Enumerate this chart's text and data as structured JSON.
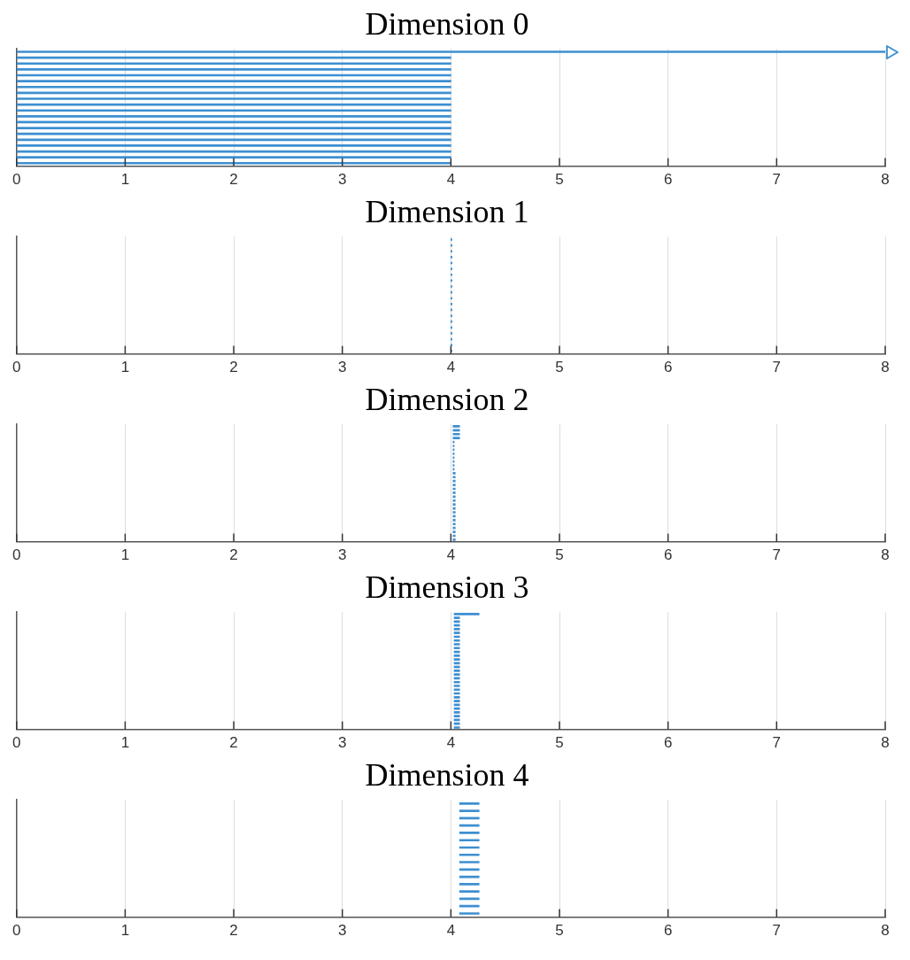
{
  "chart_data": [
    {
      "type": "bar",
      "title": "Dimension 0",
      "orientation": "horizontal",
      "categories": [
        null,
        null,
        null,
        null,
        null,
        null,
        null,
        null,
        null,
        null,
        null,
        null,
        null,
        null,
        null,
        null,
        null,
        null,
        null,
        null
      ],
      "color": "#3d8fd1",
      "values": [
        8,
        4,
        4,
        4,
        4,
        4,
        4,
        4,
        4,
        4,
        4,
        4,
        4,
        4,
        4,
        4,
        4,
        4,
        4,
        4
      ],
      "base": [
        0,
        0,
        0,
        0,
        0,
        0,
        0,
        0,
        0,
        0,
        0,
        0,
        0,
        0,
        0,
        0,
        0,
        0,
        0,
        0
      ],
      "xlim": [
        0,
        8
      ],
      "xticks": [
        0,
        1,
        2,
        3,
        4,
        5,
        6,
        7,
        8
      ],
      "grid": "x",
      "tick_labels": "x"
    },
    {
      "type": "bar",
      "title": "Dimension 1",
      "orientation": "horizontal",
      "categories": [
        null,
        null,
        null,
        null,
        null,
        null,
        null,
        null,
        null,
        null,
        null,
        null,
        null,
        null,
        null,
        null,
        null,
        null,
        null,
        null
      ],
      "color": "#3d8fd1",
      "values": [
        0.01,
        0.01,
        0.01,
        0.01,
        0.01,
        0.01,
        0.01,
        0.01,
        0.01,
        0.01,
        0.01,
        0.01,
        0.01,
        0.01,
        0.01,
        0.01,
        0.01,
        0.01,
        0.01,
        0.01
      ],
      "base": [
        4,
        4,
        4,
        4,
        4,
        4,
        4,
        4,
        4,
        4,
        4,
        4,
        4,
        4,
        4,
        4,
        4,
        4,
        4,
        4
      ],
      "xlim": [
        0,
        8
      ],
      "xticks": [
        0,
        1,
        2,
        3,
        4,
        5,
        6,
        7,
        8
      ],
      "grid": "x",
      "tick_labels": "x"
    },
    {
      "type": "bar",
      "title": "Dimension 2",
      "orientation": "horizontal",
      "categories": [
        null,
        null,
        null,
        null,
        null,
        null,
        null,
        null,
        null,
        null,
        null,
        null,
        null,
        null,
        null,
        null,
        null,
        null,
        null,
        null,
        null,
        null,
        null,
        null,
        null,
        null,
        null,
        null,
        null,
        null
      ],
      "color": "#3d8fd1",
      "values": [
        0.06,
        0.06,
        0.06,
        0.06,
        0.01,
        0.01,
        0.01,
        0.01,
        0.01,
        0.01,
        0.01,
        0.01,
        0.02,
        0.02,
        0.02,
        0.02,
        0.02,
        0.02,
        0.02,
        0.02,
        0.02,
        0.02,
        0.02,
        0.02,
        0.02,
        0.02,
        0.02,
        0.02,
        0.02,
        0.02
      ],
      "base": [
        4.02,
        4.02,
        4.02,
        4.02,
        4.02,
        4.02,
        4.02,
        4.02,
        4.02,
        4.02,
        4.02,
        4.02,
        4.02,
        4.02,
        4.02,
        4.02,
        4.02,
        4.02,
        4.02,
        4.02,
        4.02,
        4.02,
        4.02,
        4.02,
        4.02,
        4.02,
        4.02,
        4.02,
        4.02,
        4.02
      ],
      "xlim": [
        0,
        8
      ],
      "xticks": [
        0,
        1,
        2,
        3,
        4,
        5,
        6,
        7,
        8
      ],
      "grid": "x",
      "tick_labels": "x"
    },
    {
      "type": "bar",
      "title": "Dimension 3",
      "orientation": "horizontal",
      "categories": [
        null,
        null,
        null,
        null,
        null,
        null,
        null,
        null,
        null,
        null,
        null,
        null,
        null,
        null,
        null,
        null,
        null,
        null,
        null,
        null,
        null,
        null,
        null,
        null,
        null,
        null,
        null,
        null,
        null,
        null,
        null
      ],
      "color": "#3d8fd1",
      "values": [
        0.23,
        0.05,
        0.05,
        0.05,
        0.05,
        0.05,
        0.05,
        0.05,
        0.05,
        0.05,
        0.05,
        0.05,
        0.05,
        0.05,
        0.05,
        0.05,
        0.05,
        0.05,
        0.05,
        0.05,
        0.05,
        0.05,
        0.05,
        0.05,
        0.05,
        0.05,
        0.05,
        0.05,
        0.05,
        0.05,
        0.05
      ],
      "base": [
        4.03,
        4.03,
        4.03,
        4.03,
        4.03,
        4.03,
        4.03,
        4.03,
        4.03,
        4.03,
        4.03,
        4.03,
        4.03,
        4.03,
        4.03,
        4.03,
        4.03,
        4.03,
        4.03,
        4.03,
        4.03,
        4.03,
        4.03,
        4.03,
        4.03,
        4.03,
        4.03,
        4.03,
        4.03,
        4.03,
        4.03
      ],
      "xlim": [
        0,
        8
      ],
      "xticks": [
        0,
        1,
        2,
        3,
        4,
        5,
        6,
        7,
        8
      ],
      "grid": "x",
      "tick_labels": "x"
    },
    {
      "type": "bar",
      "title": "Dimension 4",
      "orientation": "horizontal",
      "categories": [
        null,
        null,
        null,
        null,
        null,
        null,
        null,
        null,
        null,
        null,
        null,
        null,
        null,
        null,
        null,
        null
      ],
      "color": "#3d8fd1",
      "values": [
        0.18,
        0.18,
        0.18,
        0.18,
        0.18,
        0.18,
        0.18,
        0.18,
        0.18,
        0.18,
        0.18,
        0.18,
        0.18,
        0.18,
        0.18,
        0.18
      ],
      "base": [
        4.08,
        4.08,
        4.08,
        4.08,
        4.08,
        4.08,
        4.08,
        4.08,
        4.08,
        4.08,
        4.08,
        4.08,
        4.08,
        4.08,
        4.08,
        4.08
      ],
      "xlim": [
        0,
        8
      ],
      "xticks": [
        0,
        1,
        2,
        3,
        4,
        5,
        6,
        7,
        8
      ],
      "grid": "x",
      "tick_labels": "x"
    }
  ]
}
